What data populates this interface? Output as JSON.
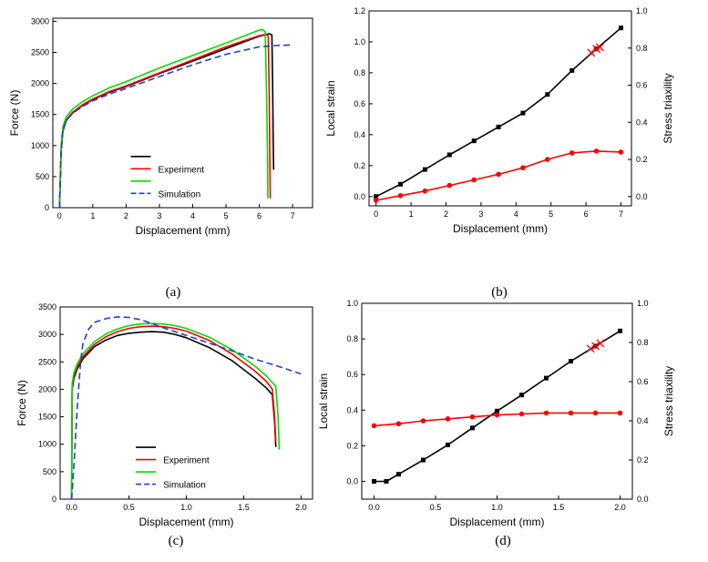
{
  "captions": [
    "(a)",
    "(b)",
    "(c)",
    "(d)"
  ],
  "chart_data": [
    {
      "type": "line",
      "xlabel": "Displacement (mm)",
      "ylabel": "Force (N)",
      "xlim": [
        -0.2,
        7.6
      ],
      "ylim": [
        0,
        3050
      ],
      "xticks": [
        0,
        1,
        2,
        3,
        4,
        5,
        6,
        7
      ],
      "yticks": [
        0,
        500,
        1000,
        1500,
        2000,
        2500,
        3000
      ],
      "legend": {
        "placement": "lower-center",
        "entries": [
          "",
          "Experiment",
          "",
          "Simulation"
        ]
      },
      "series": [
        {
          "name": "",
          "color": "#000000",
          "style": "solid",
          "x": [
            0.0,
            0.05,
            0.1,
            0.2,
            0.4,
            0.7,
            1.0,
            1.5,
            2.0,
            3.0,
            4.0,
            5.0,
            6.0,
            6.3,
            6.38,
            6.4,
            6.42,
            6.43
          ],
          "y": [
            0,
            900,
            1230,
            1400,
            1530,
            1650,
            1740,
            1860,
            1950,
            2160,
            2360,
            2560,
            2760,
            2800,
            2780,
            2000,
            1000,
            610
          ]
        },
        {
          "name": "Experiment",
          "color": "#ff0000",
          "style": "solid",
          "x": [
            0.0,
            0.05,
            0.1,
            0.2,
            0.4,
            0.7,
            1.0,
            1.5,
            2.0,
            3.0,
            4.0,
            5.0,
            6.0,
            6.2,
            6.27,
            6.3,
            6.32,
            6.33
          ],
          "y": [
            0,
            950,
            1250,
            1410,
            1540,
            1660,
            1750,
            1870,
            1960,
            2170,
            2380,
            2590,
            2770,
            2790,
            2760,
            1800,
            700,
            150
          ]
        },
        {
          "name": "",
          "color": "#00dd00",
          "style": "solid",
          "x": [
            0.0,
            0.05,
            0.1,
            0.2,
            0.4,
            0.7,
            1.0,
            1.5,
            2.0,
            3.0,
            4.0,
            5.0,
            6.0,
            6.1,
            6.18,
            6.22,
            6.25,
            6.26
          ],
          "y": [
            0,
            1000,
            1300,
            1460,
            1590,
            1710,
            1800,
            1930,
            2030,
            2250,
            2450,
            2650,
            2860,
            2870,
            2830,
            1800,
            700,
            150
          ]
        },
        {
          "name": "Simulation",
          "color": "#1f3fd0",
          "style": "dashed",
          "x": [
            0.0,
            0.05,
            0.1,
            0.2,
            0.4,
            0.7,
            1.0,
            1.5,
            2.0,
            3.0,
            4.0,
            5.0,
            6.0,
            6.5,
            7.0
          ],
          "y": [
            0,
            900,
            1250,
            1400,
            1520,
            1630,
            1720,
            1830,
            1920,
            2110,
            2300,
            2470,
            2590,
            2610,
            2620
          ]
        }
      ]
    },
    {
      "type": "line",
      "xlabel": "Displacement (mm)",
      "ylabel": "Local strain",
      "y2label": "Stress triaxility",
      "xlim": [
        -0.2,
        7.3
      ],
      "ylim": [
        -0.06,
        1.2
      ],
      "y2lim": [
        -0.05,
        1.0
      ],
      "xticks": [
        0,
        1,
        2,
        3,
        4,
        5,
        6,
        7
      ],
      "yticks": [
        0.0,
        0.2,
        0.4,
        0.6,
        0.8,
        1.0,
        1.2
      ],
      "y2ticks": [
        0.0,
        0.2,
        0.4,
        0.6,
        0.8,
        1.0
      ],
      "series": [
        {
          "name": "",
          "color": "#000000",
          "marker": "square",
          "x": [
            0,
            0.7,
            1.4,
            2.1,
            2.8,
            3.5,
            4.2,
            4.9,
            5.6,
            6.3,
            7.0
          ],
          "y": [
            0.0,
            0.08,
            0.175,
            0.27,
            0.36,
            0.45,
            0.54,
            0.66,
            0.815,
            0.955,
            1.09
          ]
        },
        {
          "name": "",
          "color": "#ff0000",
          "marker": "circle",
          "axis": "right",
          "x": [
            0,
            0.7,
            1.4,
            2.1,
            2.8,
            3.5,
            4.2,
            4.9,
            5.6,
            6.3,
            7.0
          ],
          "y": [
            -0.02,
            0.005,
            0.03,
            0.06,
            0.09,
            0.12,
            0.155,
            0.2,
            0.235,
            0.245,
            0.24
          ]
        }
      ],
      "annotations": [
        {
          "type": "x-markers",
          "color": "#ff0000",
          "x": [
            6.15,
            6.3,
            6.4
          ],
          "y": [
            0.93,
            0.955,
            0.965
          ]
        }
      ]
    },
    {
      "type": "line",
      "xlabel": "Displacement (mm)",
      "ylabel": "Force (N)",
      "xlim": [
        -0.1,
        2.1
      ],
      "ylim": [
        0,
        3500
      ],
      "xticks": [
        0.0,
        0.5,
        1.0,
        1.5,
        2.0
      ],
      "yticks": [
        0,
        500,
        1000,
        1500,
        2000,
        2500,
        3000,
        3500
      ],
      "legend": {
        "placement": "lower-center",
        "entries": [
          "",
          "Experiment",
          "",
          "Simulation"
        ]
      },
      "series": [
        {
          "name": "",
          "color": "#000000",
          "style": "solid",
          "x": [
            0.0,
            0.005,
            0.02,
            0.05,
            0.1,
            0.2,
            0.3,
            0.4,
            0.5,
            0.6,
            0.7,
            0.8,
            0.9,
            1.0,
            1.2,
            1.4,
            1.6,
            1.7,
            1.75,
            1.77,
            1.78
          ],
          "y": [
            0,
            2000,
            2200,
            2380,
            2560,
            2780,
            2900,
            2980,
            3020,
            3040,
            3050,
            3040,
            3000,
            2940,
            2760,
            2520,
            2200,
            2020,
            1900,
            1400,
            950
          ]
        },
        {
          "name": "Experiment",
          "color": "#ff0000",
          "style": "solid",
          "x": [
            0.0,
            0.005,
            0.02,
            0.05,
            0.1,
            0.2,
            0.3,
            0.4,
            0.5,
            0.6,
            0.7,
            0.8,
            0.9,
            1.0,
            1.2,
            1.4,
            1.6,
            1.7,
            1.75,
            1.77,
            1.78
          ],
          "y": [
            0,
            2050,
            2250,
            2420,
            2600,
            2820,
            2960,
            3050,
            3110,
            3140,
            3150,
            3140,
            3110,
            3060,
            2890,
            2640,
            2330,
            2140,
            2000,
            1500,
            1050
          ]
        },
        {
          "name": "",
          "color": "#00dd00",
          "style": "solid",
          "x": [
            0.0,
            0.005,
            0.02,
            0.05,
            0.1,
            0.2,
            0.3,
            0.4,
            0.5,
            0.6,
            0.7,
            0.8,
            0.9,
            1.0,
            1.2,
            1.4,
            1.6,
            1.7,
            1.78,
            1.8,
            1.81
          ],
          "y": [
            0,
            2100,
            2300,
            2470,
            2650,
            2870,
            3010,
            3100,
            3160,
            3190,
            3200,
            3190,
            3160,
            3110,
            2950,
            2720,
            2420,
            2240,
            2050,
            1500,
            900
          ]
        },
        {
          "name": "Simulation",
          "color": "#1f3fd0",
          "style": "dashed",
          "x": [
            0.0,
            0.02,
            0.05,
            0.08,
            0.1,
            0.15,
            0.2,
            0.3,
            0.4,
            0.5,
            0.6,
            0.7,
            0.8,
            1.0,
            1.2,
            1.4,
            1.6,
            1.8,
            2.0
          ],
          "y": [
            0,
            600,
            1700,
            2550,
            2850,
            3100,
            3220,
            3290,
            3320,
            3310,
            3270,
            3200,
            3120,
            2980,
            2840,
            2700,
            2550,
            2420,
            2280
          ]
        }
      ]
    },
    {
      "type": "line",
      "xlabel": "Displacement (mm)",
      "ylabel": "Local strain",
      "y2label": "Stress triaxility",
      "xlim": [
        -0.1,
        2.1
      ],
      "ylim": [
        -0.1,
        1.0
      ],
      "y2lim": [
        0.0,
        1.0
      ],
      "xticks": [
        0.0,
        0.5,
        1.0,
        1.5,
        2.0
      ],
      "yticks": [
        0.0,
        0.2,
        0.4,
        0.6,
        0.8,
        1.0
      ],
      "y2ticks": [
        0.0,
        0.2,
        0.4,
        0.6,
        0.8,
        1.0
      ],
      "series": [
        {
          "name": "",
          "color": "#000000",
          "marker": "square",
          "x": [
            0.0,
            0.1,
            0.2,
            0.4,
            0.6,
            0.8,
            1.0,
            1.2,
            1.4,
            1.6,
            1.8,
            2.0
          ],
          "y": [
            0.0,
            0.0,
            0.04,
            0.12,
            0.205,
            0.3,
            0.395,
            0.485,
            0.58,
            0.675,
            0.76,
            0.845
          ]
        },
        {
          "name": "",
          "color": "#ff0000",
          "marker": "circle",
          "axis": "right",
          "x": [
            0.0,
            0.2,
            0.4,
            0.6,
            0.8,
            1.0,
            1.2,
            1.4,
            1.6,
            1.8,
            2.0
          ],
          "y": [
            0.375,
            0.385,
            0.4,
            0.41,
            0.42,
            0.43,
            0.435,
            0.44,
            0.44,
            0.44,
            0.44
          ]
        }
      ],
      "annotations": [
        {
          "type": "x-markers",
          "color": "#ff0000",
          "x": [
            1.76,
            1.8,
            1.84
          ],
          "y": [
            0.745,
            0.76,
            0.775
          ]
        }
      ]
    }
  ]
}
